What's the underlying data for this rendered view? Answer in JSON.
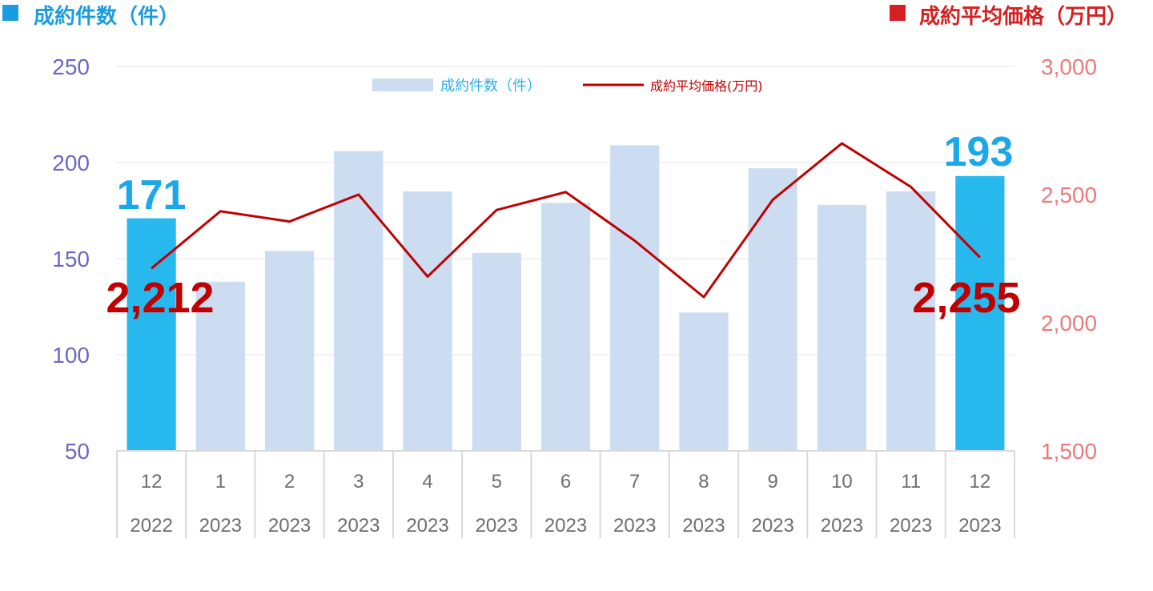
{
  "header": {
    "left_title": "成約件数（件）",
    "right_title": "成約平均価格（万円）",
    "left_color": "#1a9de0",
    "right_color": "#d42020"
  },
  "legend": {
    "bar_label": "成約件数（件）",
    "line_label": "成約平均価格(万円)",
    "bar_color": "#ccddf2",
    "line_color": "#c00000",
    "bar_text_color": "#27b2ec",
    "line_text_color": "#c00000"
  },
  "chart_data": {
    "type": "bar",
    "categories": [
      {
        "month": "12",
        "year": "2022"
      },
      {
        "month": "1",
        "year": "2023"
      },
      {
        "month": "2",
        "year": "2023"
      },
      {
        "month": "3",
        "year": "2023"
      },
      {
        "month": "4",
        "year": "2023"
      },
      {
        "month": "5",
        "year": "2023"
      },
      {
        "month": "6",
        "year": "2023"
      },
      {
        "month": "7",
        "year": "2023"
      },
      {
        "month": "8",
        "year": "2023"
      },
      {
        "month": "9",
        "year": "2023"
      },
      {
        "month": "10",
        "year": "2023"
      },
      {
        "month": "11",
        "year": "2023"
      },
      {
        "month": "12",
        "year": "2023"
      }
    ],
    "series": [
      {
        "name": "成約件数（件）",
        "type": "bar",
        "axis": "left",
        "values": [
          171,
          138,
          154,
          206,
          185,
          153,
          179,
          209,
          122,
          197,
          178,
          185,
          193
        ],
        "highlight_indices": [
          0,
          12
        ],
        "color": "#ccddf2",
        "highlight_color": "#27b9ee"
      },
      {
        "name": "成約平均価格(万円)",
        "type": "line",
        "axis": "right",
        "values": [
          2212,
          2435,
          2395,
          2500,
          2180,
          2440,
          2510,
          2320,
          2100,
          2480,
          2700,
          2530,
          2255
        ],
        "color": "#c00000"
      }
    ],
    "y_left": {
      "ylim": [
        50,
        250
      ],
      "ticks": [
        "50",
        "100",
        "150",
        "200",
        "250"
      ],
      "color": "#6a66c4"
    },
    "y_right": {
      "ylim": [
        1500,
        3000
      ],
      "ticks": [
        "1,500",
        "2,000",
        "2,500",
        "3,000"
      ],
      "color": "#f07878"
    },
    "grid": true,
    "legend_position": "top-center",
    "callouts": {
      "first_count": "171",
      "last_count": "193",
      "first_price": "2,212",
      "last_price": "2,255",
      "count_color": "#1aa8ea",
      "price_color": "#c00000"
    }
  }
}
